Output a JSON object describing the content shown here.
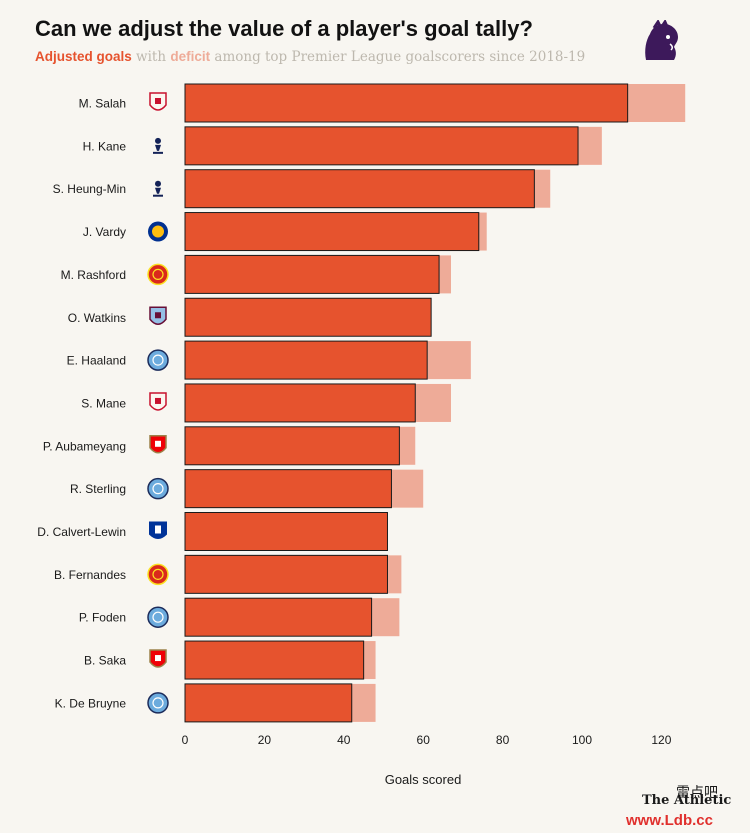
{
  "header": {
    "title": "Can we adjust the value of a player's goal tally?",
    "subtitle_adjusted": "Adjusted goals",
    "subtitle_with": " with ",
    "subtitle_deficit": "deficit",
    "subtitle_rest": " among top Premier League goalscorers since 2018-19"
  },
  "footer": {
    "brand": "The Athletic"
  },
  "watermark": {
    "site": "www.Ldb.cc",
    "cn": "雷点吧"
  },
  "colors": {
    "adjusted": "#e6532e",
    "deficit": "#eeab98",
    "background": "#f8f6f1",
    "axis_text": "#1a1a1a"
  },
  "chart_data": {
    "type": "bar",
    "orientation": "horizontal",
    "stacked": true,
    "xlabel": "Goals scored",
    "xlim": [
      0,
      130
    ],
    "xticks": [
      0,
      20,
      40,
      60,
      80,
      100,
      120
    ],
    "grid": false,
    "categories": [
      "M. Salah",
      "H. Kane",
      "S. Heung-Min",
      "J. Vardy",
      "M. Rashford",
      "O. Watkins",
      "E. Haaland",
      "S. Mane",
      "P. Aubameyang",
      "R. Sterling",
      "D. Calvert-Lewin",
      "B. Fernandes",
      "P. Foden",
      "B. Saka",
      "K. De Bruyne"
    ],
    "club_icons": [
      "liverpool-crest-icon",
      "tottenham-crest-icon",
      "tottenham-crest-icon",
      "leicester-crest-icon",
      "man-united-crest-icon",
      "aston-villa-crest-icon",
      "man-city-crest-icon",
      "liverpool-crest-icon",
      "arsenal-crest-icon",
      "man-city-crest-icon",
      "everton-crest-icon",
      "man-united-crest-icon",
      "man-city-crest-icon",
      "arsenal-crest-icon",
      "man-city-crest-icon"
    ],
    "series": [
      {
        "name": "Adjusted goals",
        "values": [
          111.5,
          99,
          88,
          74,
          64,
          62,
          61,
          58,
          54,
          52,
          51,
          51,
          47,
          45,
          42
        ]
      },
      {
        "name": "deficit",
        "values": [
          14.5,
          6,
          4,
          2,
          3,
          0,
          11,
          9,
          4,
          8,
          0,
          3.5,
          7,
          3,
          6
        ]
      }
    ]
  }
}
